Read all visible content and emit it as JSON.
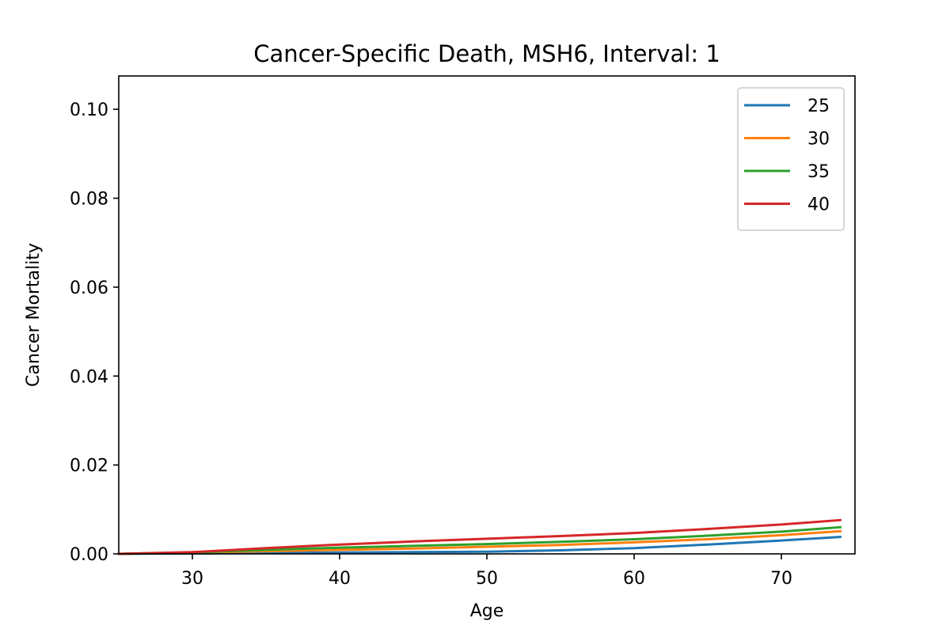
{
  "chart_data": {
    "type": "line",
    "title": "Cancer-Specific Death, MSH6, Interval: 1",
    "xlabel": "Age",
    "ylabel": "Cancer Mortality",
    "xlim": [
      25,
      75
    ],
    "ylim": [
      0,
      0.1075
    ],
    "xticks": [
      30,
      40,
      50,
      60,
      70
    ],
    "xtick_labels": [
      "30",
      "40",
      "50",
      "60",
      "70"
    ],
    "yticks": [
      0,
      0.02,
      0.04,
      0.06,
      0.08,
      0.1
    ],
    "ytick_labels": [
      "0.00",
      "0.02",
      "0.04",
      "0.06",
      "0.08",
      "0.10"
    ],
    "grid": false,
    "legend_position": "top-right",
    "x": [
      25,
      30,
      35,
      40,
      45,
      50,
      55,
      60,
      65,
      70,
      74
    ],
    "series": [
      {
        "name": "25",
        "color": "#1f77b4",
        "values": [
          0,
          0.0001,
          0.0002,
          0.0003,
          0.0004,
          0.0005,
          0.0008,
          0.0013,
          0.0021,
          0.003,
          0.0038
        ]
      },
      {
        "name": "30",
        "color": "#ff7f0e",
        "values": [
          0,
          0.0003,
          0.0006,
          0.0009,
          0.0012,
          0.0016,
          0.002,
          0.0026,
          0.0033,
          0.0042,
          0.0051
        ]
      },
      {
        "name": "35",
        "color": "#2ca02c",
        "values": [
          0,
          0.0003,
          0.0009,
          0.0014,
          0.0018,
          0.0022,
          0.0027,
          0.0033,
          0.0041,
          0.005,
          0.006
        ]
      },
      {
        "name": "40",
        "color": "#d62728",
        "values": [
          0,
          0.0004,
          0.0013,
          0.0021,
          0.0028,
          0.0034,
          0.004,
          0.0047,
          0.0056,
          0.0066,
          0.0076
        ]
      }
    ]
  }
}
